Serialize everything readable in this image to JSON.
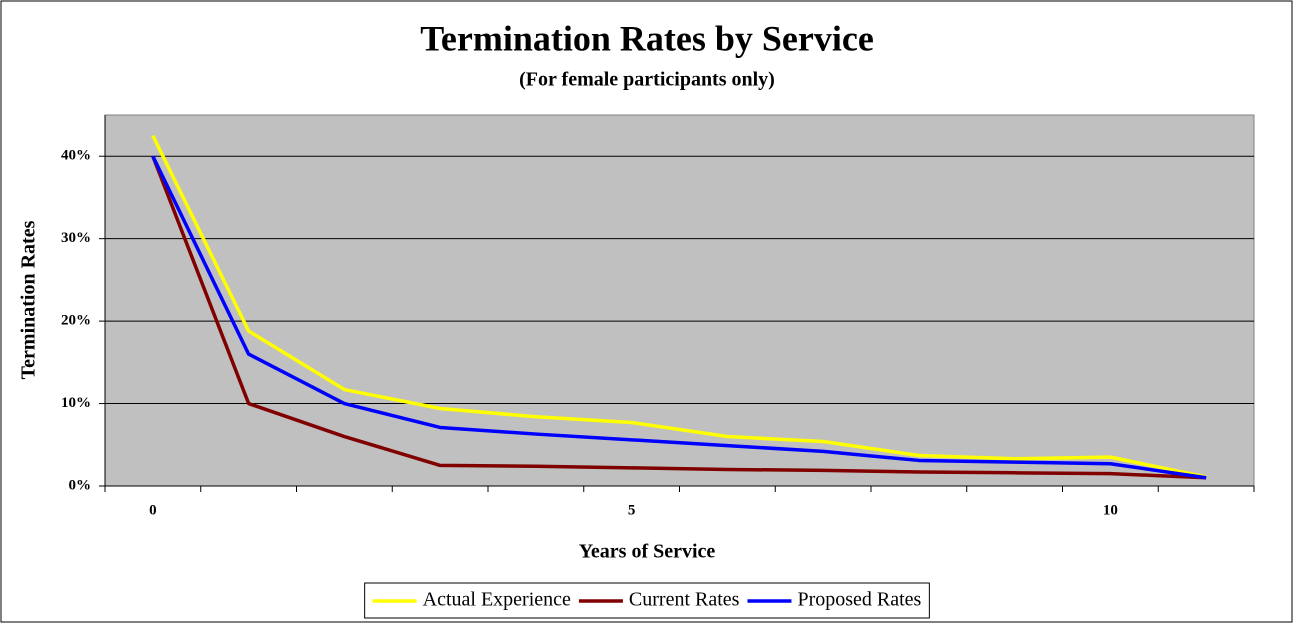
{
  "chart_data": {
    "type": "line",
    "title": "Termination Rates by Service",
    "subtitle": "(For female participants only)",
    "x_label": "Years of Service",
    "y_label": "Termination Rates",
    "categories": [
      "0",
      null,
      null,
      null,
      null,
      "5",
      null,
      null,
      null,
      null,
      "10",
      null
    ],
    "series": [
      {
        "name": "Actual Experience",
        "color": "#ffff00",
        "values": [
          42.5,
          18.8,
          11.7,
          9.4,
          8.4,
          7.7,
          6.0,
          5.4,
          3.7,
          3.3,
          3.5,
          1.1
        ]
      },
      {
        "name": "Current Rates",
        "color": "#800000",
        "values": [
          40,
          10,
          6,
          2.5,
          2.4,
          2.2,
          2.0,
          1.9,
          1.7,
          1.6,
          1.5,
          1.0
        ]
      },
      {
        "name": "Proposed Rates",
        "color": "#0000ff",
        "values": [
          40,
          16,
          10,
          7.1,
          6.3,
          5.6,
          4.9,
          4.2,
          3.1,
          2.9,
          2.7,
          1.0
        ]
      }
    ],
    "ylim": [
      0,
      45
    ],
    "yticks": [
      {
        "value": 0,
        "label": "0%"
      },
      {
        "value": 10,
        "label": "10%"
      },
      {
        "value": 20,
        "label": "20%"
      },
      {
        "value": 30,
        "label": "30%"
      },
      {
        "value": 40,
        "label": "40%"
      }
    ],
    "grid": true,
    "legend": "bottom"
  }
}
